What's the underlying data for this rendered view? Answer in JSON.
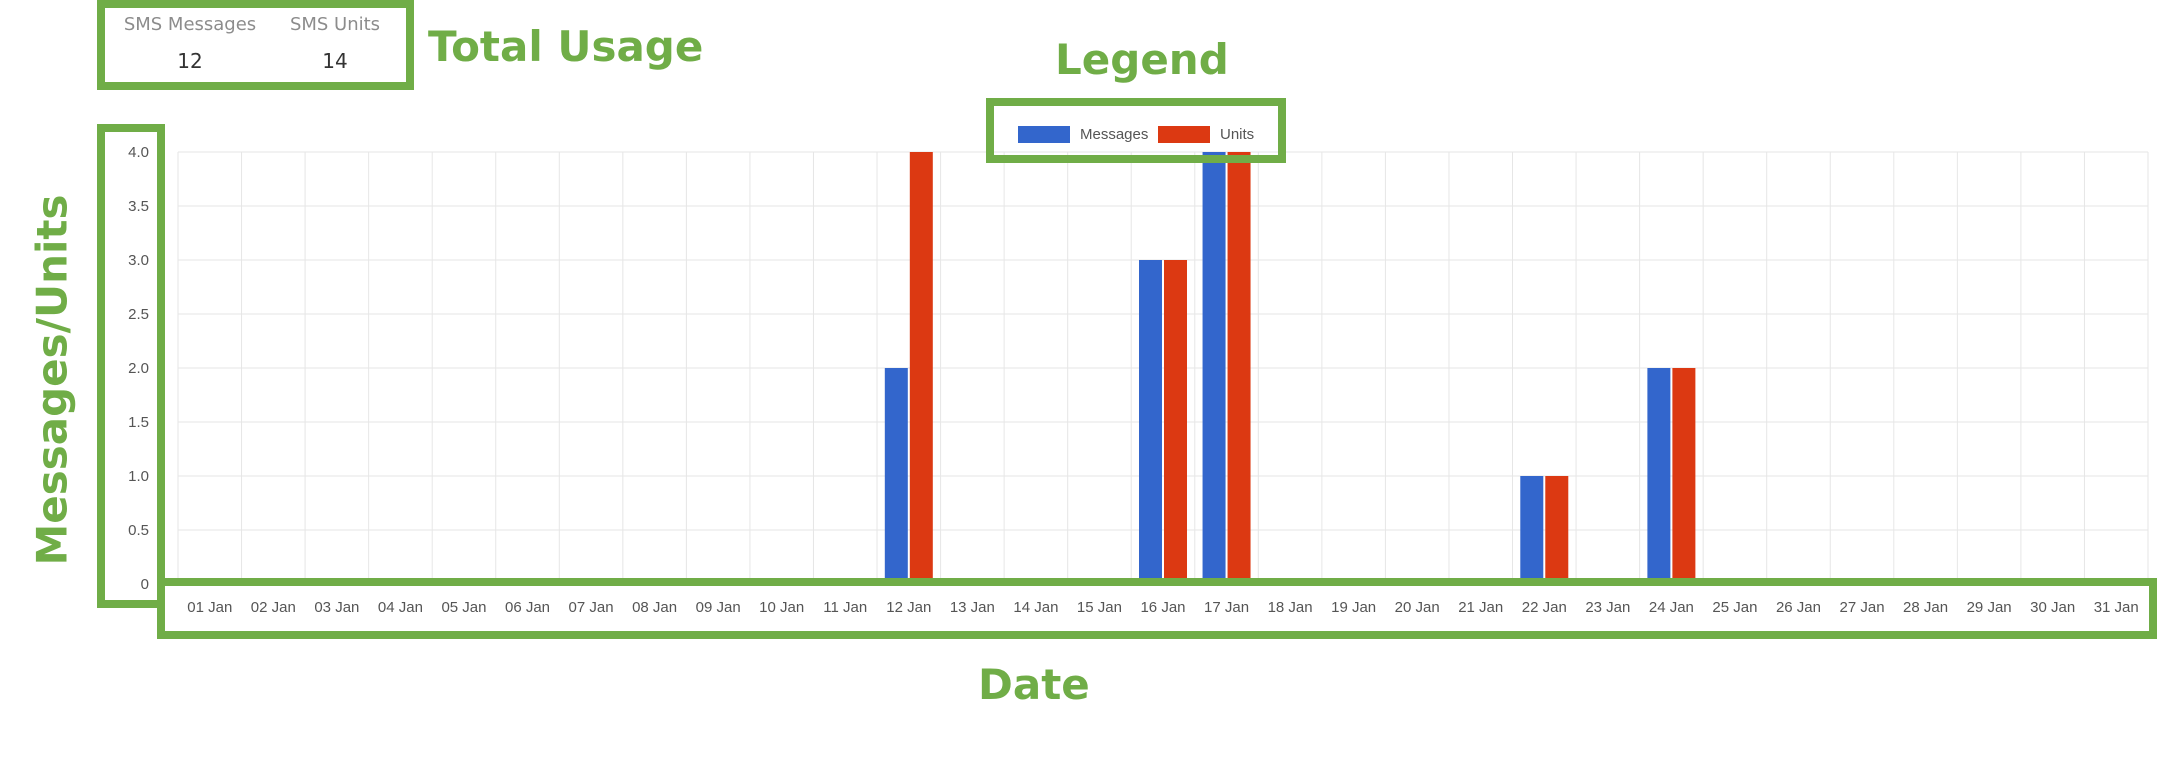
{
  "summary": {
    "messages_label": "SMS Messages",
    "messages_value": "12",
    "units_label": "SMS Units",
    "units_value": "14"
  },
  "annotations": {
    "total_usage": "Total Usage",
    "legend": "Legend",
    "y_axis": "Messages/Units",
    "x_axis": "Date"
  },
  "colors": {
    "messages": "#3366cc",
    "units": "#dc3912",
    "annotation": "#70ad47",
    "grid": "#e6e6e6"
  },
  "chart_data": {
    "type": "bar",
    "categories": [
      "01 Jan",
      "02 Jan",
      "03 Jan",
      "04 Jan",
      "05 Jan",
      "06 Jan",
      "07 Jan",
      "08 Jan",
      "09 Jan",
      "10 Jan",
      "11 Jan",
      "12 Jan",
      "13 Jan",
      "14 Jan",
      "15 Jan",
      "16 Jan",
      "17 Jan",
      "18 Jan",
      "19 Jan",
      "20 Jan",
      "21 Jan",
      "22 Jan",
      "23 Jan",
      "24 Jan",
      "25 Jan",
      "26 Jan",
      "27 Jan",
      "28 Jan",
      "29 Jan",
      "30 Jan",
      "31 Jan"
    ],
    "series": [
      {
        "name": "Messages",
        "values": [
          0,
          0,
          0,
          0,
          0,
          0,
          0,
          0,
          0,
          0,
          0,
          2,
          0,
          0,
          0,
          3,
          4,
          0,
          0,
          0,
          0,
          1,
          0,
          2,
          0,
          0,
          0,
          0,
          0,
          0,
          0
        ]
      },
      {
        "name": "Units",
        "values": [
          0,
          0,
          0,
          0,
          0,
          0,
          0,
          0,
          0,
          0,
          0,
          4,
          0,
          0,
          0,
          3,
          4,
          0,
          0,
          0,
          0,
          1,
          0,
          2,
          0,
          0,
          0,
          0,
          0,
          0,
          0
        ]
      }
    ],
    "y_ticks": [
      "0",
      "0.5",
      "1.0",
      "1.5",
      "2.0",
      "2.5",
      "3.0",
      "3.5",
      "4.0"
    ],
    "ylim": [
      0,
      4
    ],
    "grid": true,
    "legend_position": "top-center"
  }
}
